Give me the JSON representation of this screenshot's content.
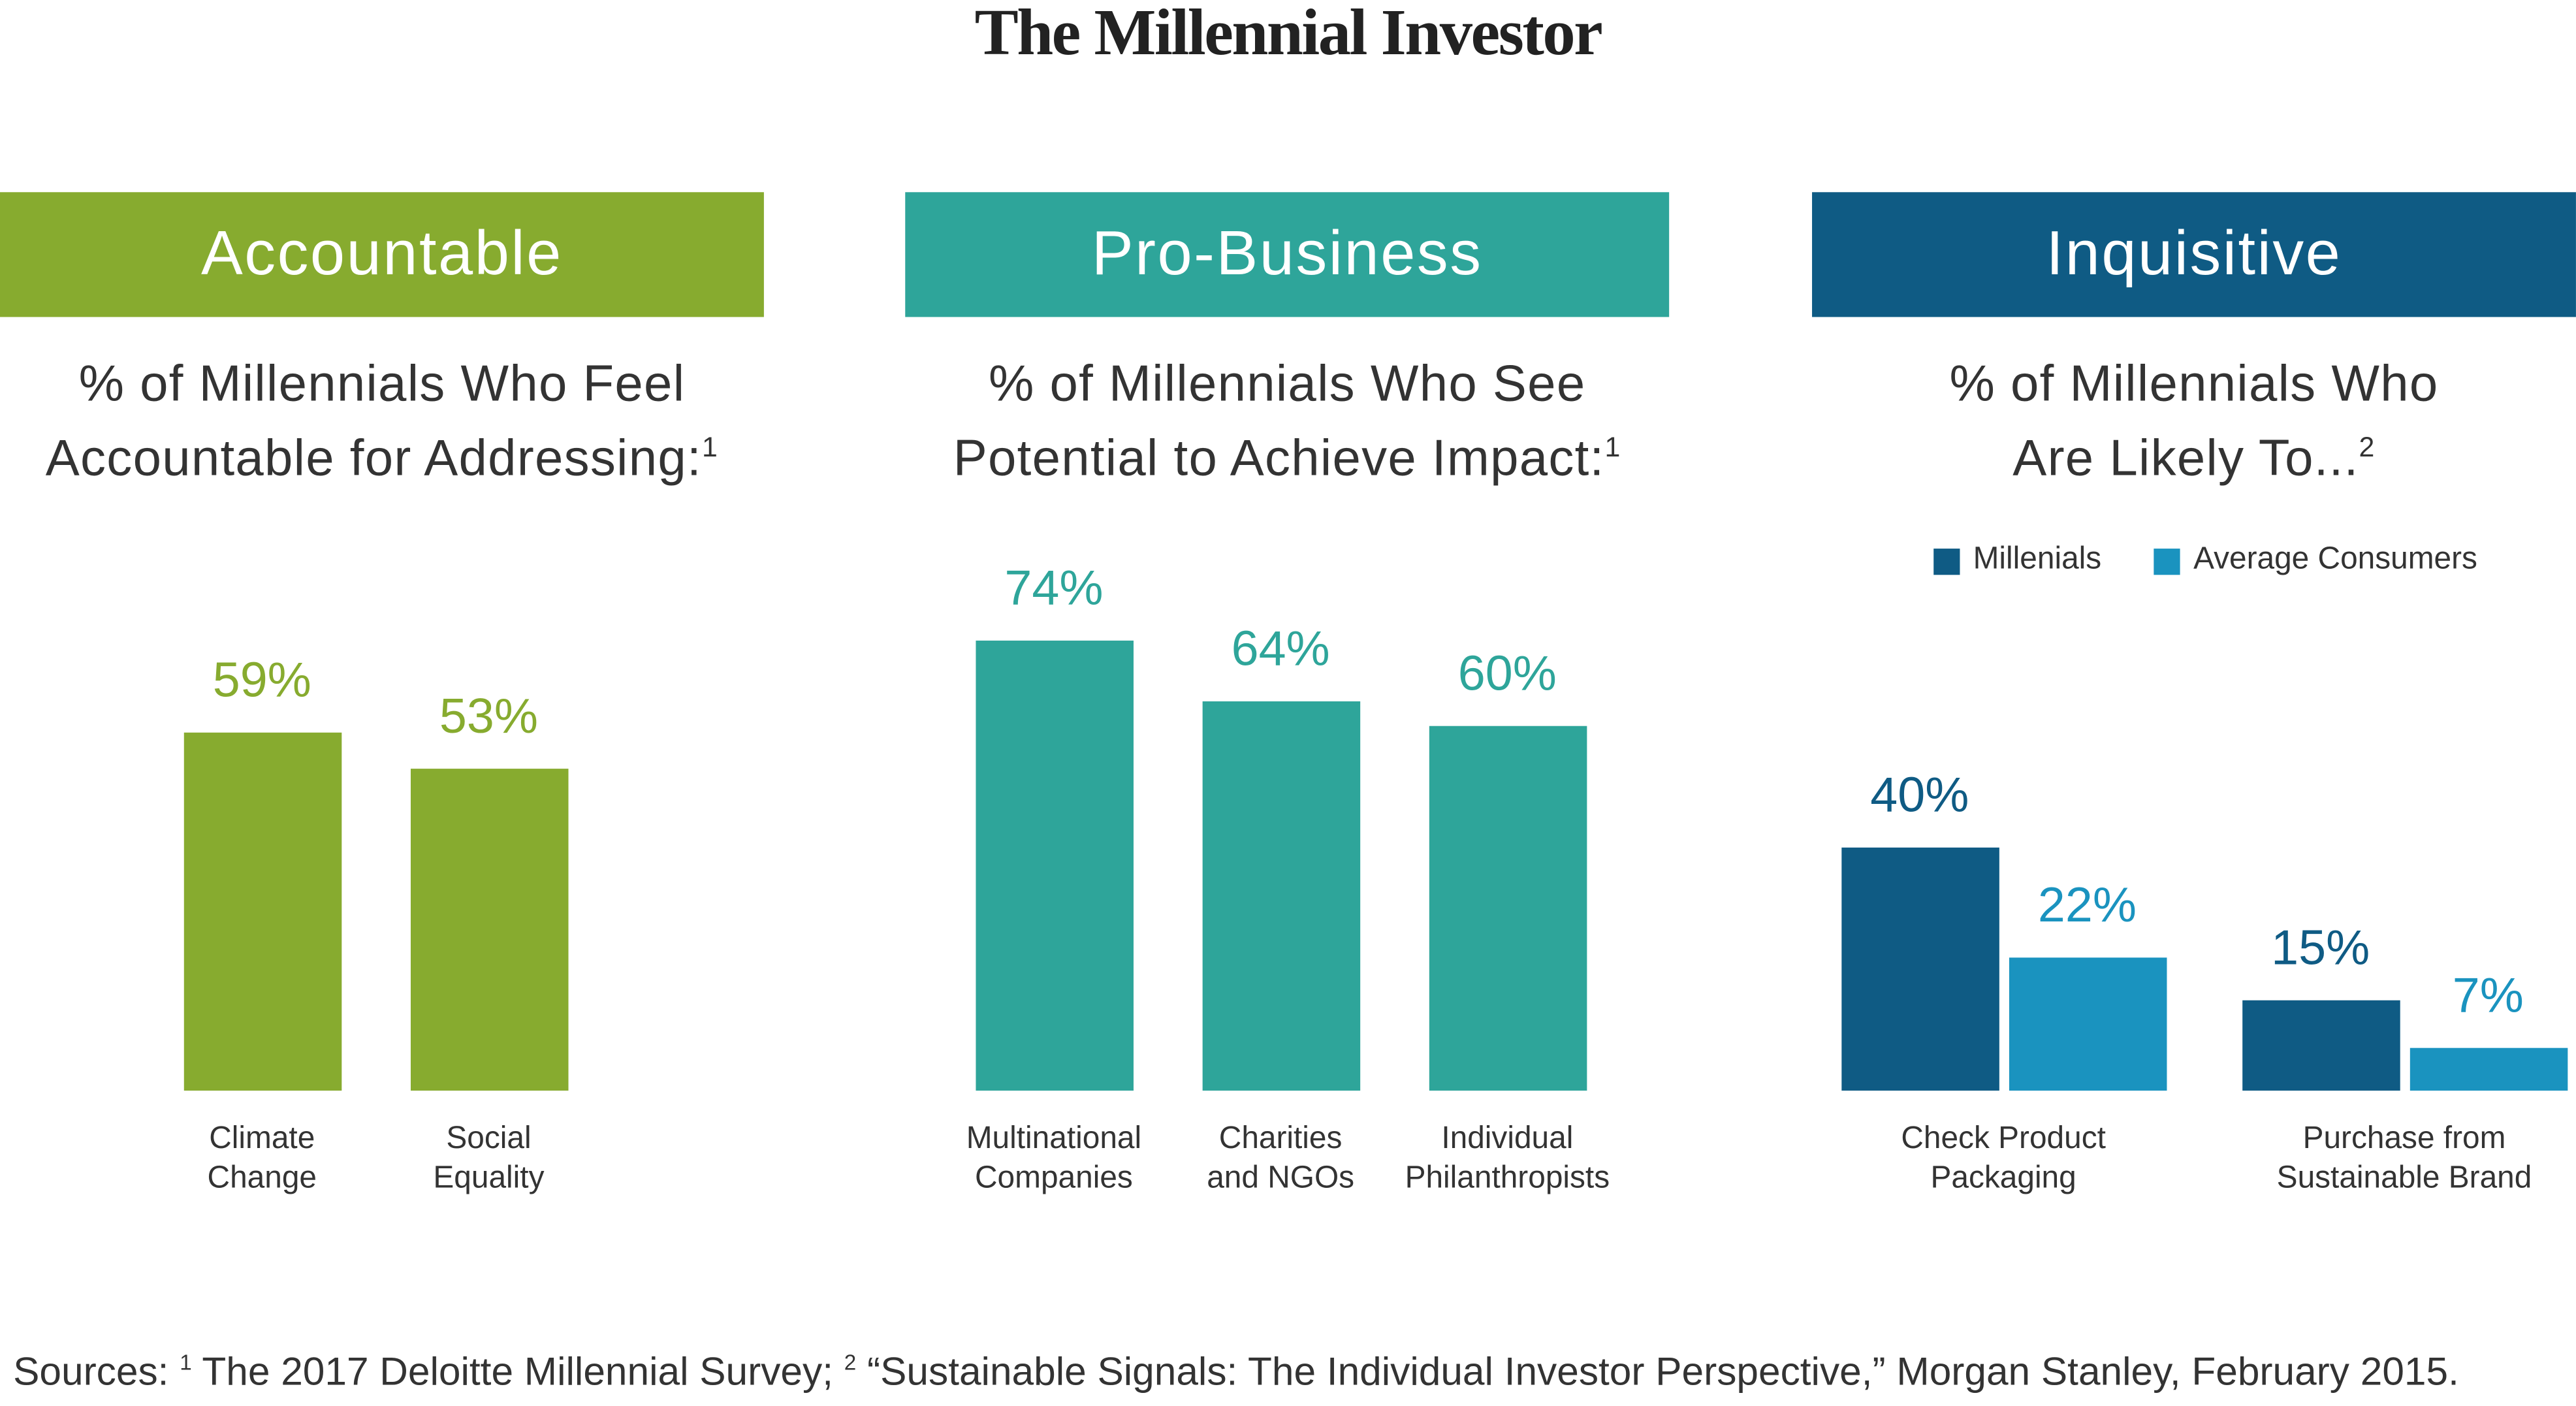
{
  "page_title": "The Millennial Investor",
  "chart_data": [
    {
      "type": "bar",
      "title": "Accountable",
      "color": "#87ab2f",
      "subtitle": "% of Millennials Who Feel\nAccountable for Addressing:",
      "footnote": "1",
      "categories": [
        "Climate\nChange",
        "Social\nEquality"
      ],
      "values": [
        59,
        53
      ],
      "value_labels": [
        "59%",
        "53%"
      ]
    },
    {
      "type": "bar",
      "title": "Pro-Business",
      "color": "#2ea59a",
      "subtitle": "% of Millennials Who See\nPotential to Achieve Impact:",
      "footnote": "1",
      "categories": [
        "Multinational\nCompanies",
        "Charities\nand NGOs",
        "Individual\nPhilanthropists"
      ],
      "values": [
        74,
        64,
        60
      ],
      "value_labels": [
        "74%",
        "64%",
        "60%"
      ]
    },
    {
      "type": "grouped_bar",
      "title": "Inquisitive",
      "color": "#0f5b84",
      "subtitle": "% of Millennials Who\nAre Likely To...",
      "footnote": "2",
      "categories": [
        "Check Product\nPackaging",
        "Purchase from\nSustainable Brand"
      ],
      "series": [
        {
          "name": "Millenials",
          "color": "#0f5b84",
          "values": [
            40,
            15
          ],
          "value_labels": [
            "40%",
            "15%"
          ]
        },
        {
          "name": "Average Consumers",
          "color": "#1a93bf",
          "values": [
            22,
            7
          ],
          "value_labels": [
            "22%",
            "7%"
          ]
        }
      ]
    }
  ],
  "footer": {
    "label": "Sources:",
    "notes": [
      {
        "marker": "1",
        "text": "The 2017 Deloitte Millennial Survey;"
      },
      {
        "marker": "2",
        "text": "“Sustainable Signals: The Individual Investor Perspective,” Morgan Stanley, February 2015."
      }
    ]
  }
}
